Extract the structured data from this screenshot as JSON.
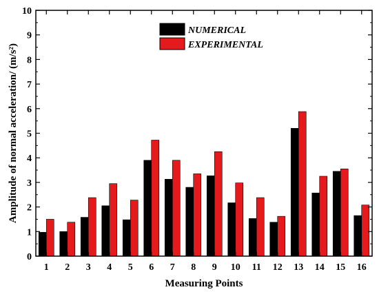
{
  "chart_data": {
    "type": "bar",
    "categories": [
      "1",
      "2",
      "3",
      "4",
      "5",
      "6",
      "7",
      "8",
      "9",
      "10",
      "11",
      "12",
      "13",
      "14",
      "15",
      "16"
    ],
    "series": [
      {
        "name": "NUMERICAL",
        "color": "#000000",
        "values": [
          0.97,
          1.0,
          1.58,
          2.05,
          1.48,
          3.9,
          3.13,
          2.8,
          3.27,
          2.17,
          1.53,
          1.38,
          5.2,
          2.57,
          3.45,
          1.65
        ]
      },
      {
        "name": "EXPERIMENTAL",
        "color": "#e41a1c",
        "values": [
          1.5,
          1.38,
          2.38,
          2.95,
          2.28,
          4.72,
          3.9,
          3.35,
          4.25,
          2.98,
          2.38,
          1.62,
          5.88,
          3.25,
          3.55,
          2.08
        ]
      }
    ],
    "xlabel": "Measuring Points",
    "ylabel": "Amplitude of normal acceleration/ (m/s²)",
    "ylim": [
      0,
      10
    ],
    "yticks": [
      0,
      1,
      2,
      3,
      4,
      5,
      6,
      7,
      8,
      9,
      10
    ],
    "legend_position": "top-center",
    "grid": false
  }
}
